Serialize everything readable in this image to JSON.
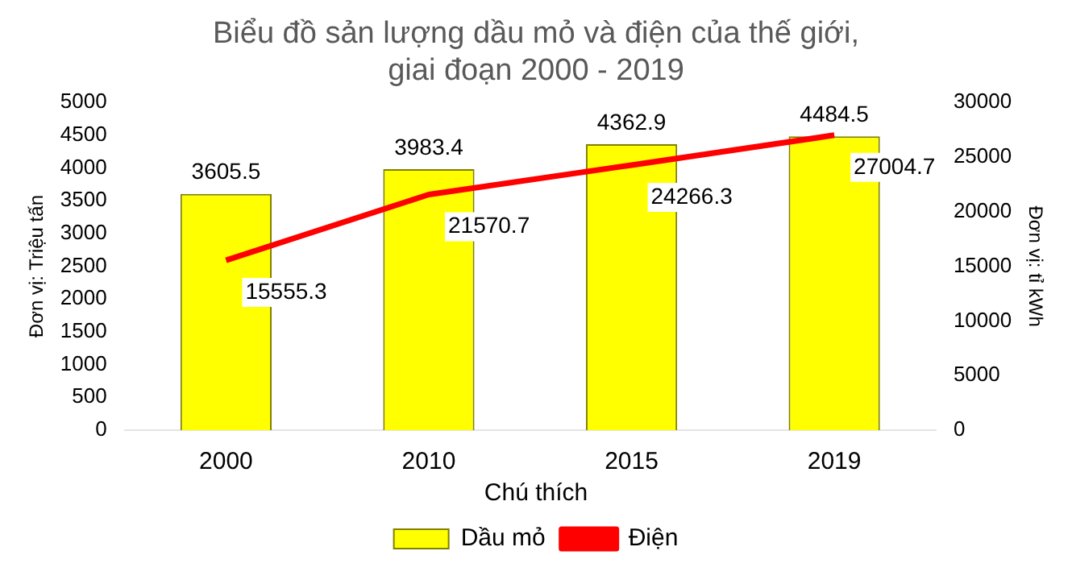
{
  "chart_data": {
    "type": "bar",
    "title": [
      "Biểu đồ sản lượng dầu mỏ và điện của thế giới,",
      "giai đoạn 2000 - 2019"
    ],
    "categories": [
      "2000",
      "2010",
      "2015",
      "2019"
    ],
    "series": [
      {
        "name": "Dầu mỏ",
        "color": "#ffff00",
        "values": [
          3605.5,
          3983.4,
          4362.9,
          4484.5
        ]
      },
      {
        "name": "Điện",
        "type": "line",
        "axis": "y2",
        "color": "#ff0000",
        "values": [
          15555.3,
          21570.7,
          24266.3,
          27004.7
        ]
      }
    ],
    "ylabel": "Đơn vị: Triệu tấn",
    "y2label": "Đơn vị: tỉ kWh",
    "ylim": [
      0,
      5000
    ],
    "yticks": [
      0,
      500,
      1000,
      1500,
      2000,
      2500,
      3000,
      3500,
      4000,
      4500,
      5000
    ],
    "y2lim": [
      0,
      30000
    ],
    "y2ticks": [
      0,
      5000,
      10000,
      15000,
      20000,
      25000,
      30000
    ],
    "legend": "bottom",
    "legend_title": "Chú thích",
    "data_labels": true,
    "grid": false,
    "marker": "none"
  }
}
